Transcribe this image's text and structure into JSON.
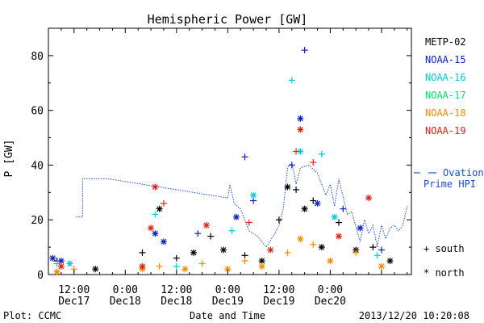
{
  "chart_data": {
    "type": "scatter",
    "title": "Hemispheric Power [GW]",
    "ylabel": "P [GW]",
    "xlabel": "Date and Time",
    "ylim": [
      0,
      90
    ],
    "xlim": [
      "2013-12-17 06:00",
      "2013-12-20 19:00"
    ],
    "yticks": [
      0,
      20,
      40,
      60,
      80
    ],
    "xticks": [
      {
        "time": "2013-12-17 12:00",
        "line1": "12:00",
        "line2": "Dec17"
      },
      {
        "time": "2013-12-18 00:00",
        "line1": "0:00",
        "line2": "Dec18"
      },
      {
        "time": "2013-12-18 12:00",
        "line1": "12:00",
        "line2": "Dec18"
      },
      {
        "time": "2013-12-19 00:00",
        "line1": "0:00",
        "line2": "Dec19"
      },
      {
        "time": "2013-12-19 12:00",
        "line1": "12:00",
        "line2": "Dec19"
      },
      {
        "time": "2013-12-20 00:00",
        "line1": "0:00",
        "line2": "Dec20"
      }
    ],
    "grid": false,
    "legend_position": "right",
    "series": [
      {
        "name": "METP-02",
        "color": "#000000",
        "points": [
          [
            "2013-12-17 08:00",
            5,
            "south"
          ],
          [
            "2013-12-17 17:00",
            2,
            "north"
          ],
          [
            "2013-12-18 04:00",
            8,
            "south"
          ],
          [
            "2013-12-18 08:00",
            24,
            "north"
          ],
          [
            "2013-12-18 12:00",
            6,
            "south"
          ],
          [
            "2013-12-18 16:00",
            8,
            "north"
          ],
          [
            "2013-12-18 20:00",
            14,
            "south"
          ],
          [
            "2013-12-18 23:00",
            9,
            "north"
          ],
          [
            "2013-12-19 04:00",
            7,
            "south"
          ],
          [
            "2013-12-19 08:00",
            5,
            "north"
          ],
          [
            "2013-12-19 12:00",
            20,
            "south"
          ],
          [
            "2013-12-19 14:00",
            32,
            "north"
          ],
          [
            "2013-12-19 16:00",
            31,
            "south"
          ],
          [
            "2013-12-19 18:00",
            24,
            "north"
          ],
          [
            "2013-12-19 20:00",
            27,
            "south"
          ],
          [
            "2013-12-19 22:00",
            10,
            "north"
          ],
          [
            "2013-12-20 02:00",
            19,
            "south"
          ],
          [
            "2013-12-20 06:00",
            9,
            "north"
          ],
          [
            "2013-12-20 10:00",
            10,
            "south"
          ],
          [
            "2013-12-20 14:00",
            5,
            "north"
          ]
        ]
      },
      {
        "name": "NOAA-15",
        "color": "#0a1fc0",
        "points": [
          [
            "2013-12-17 07:00",
            6,
            "north"
          ],
          [
            "2013-12-17 09:00",
            5,
            "north"
          ],
          [
            "2013-12-18 07:00",
            15,
            "north"
          ],
          [
            "2013-12-18 09:00",
            12,
            "north"
          ],
          [
            "2013-12-18 17:00",
            15,
            "south"
          ],
          [
            "2013-12-19 02:00",
            21,
            "north"
          ],
          [
            "2013-12-19 04:00",
            43,
            "south"
          ],
          [
            "2013-12-19 06:00",
            27,
            "south"
          ],
          [
            "2013-12-19 15:00",
            40,
            "south"
          ],
          [
            "2013-12-19 17:00",
            57,
            "north"
          ],
          [
            "2013-12-19 18:00",
            82,
            "south"
          ],
          [
            "2013-12-19 21:00",
            26,
            "north"
          ],
          [
            "2013-12-20 03:00",
            24,
            "south"
          ],
          [
            "2013-12-20 07:00",
            17,
            "north"
          ],
          [
            "2013-12-20 12:00",
            9,
            "south"
          ]
        ]
      },
      {
        "name": "NOAA-16",
        "color": "#00c8e0",
        "points": [
          [
            "2013-12-17 08:00",
            4,
            "south"
          ],
          [
            "2013-12-17 11:00",
            4,
            "north"
          ],
          [
            "2013-12-18 07:00",
            22,
            "south"
          ],
          [
            "2013-12-18 12:00",
            3,
            "south"
          ],
          [
            "2013-12-19 01:00",
            16,
            "south"
          ],
          [
            "2013-12-19 06:00",
            29,
            "north"
          ],
          [
            "2013-12-19 15:00",
            71,
            "south"
          ],
          [
            "2013-12-19 17:00",
            45,
            "north"
          ],
          [
            "2013-12-19 22:00",
            44,
            "south"
          ],
          [
            "2013-12-20 01:00",
            21,
            "north"
          ],
          [
            "2013-12-20 11:00",
            7,
            "south"
          ]
        ]
      },
      {
        "name": "NOAA-17",
        "color": "#00e070",
        "points": []
      },
      {
        "name": "NOAA-18",
        "color": "#f08c00",
        "points": [
          [
            "2013-12-17 08:00",
            1,
            "north"
          ],
          [
            "2013-12-17 12:00",
            2,
            "south"
          ],
          [
            "2013-12-18 04:00",
            2,
            "north"
          ],
          [
            "2013-12-18 08:00",
            3,
            "south"
          ],
          [
            "2013-12-18 14:00",
            2,
            "north"
          ],
          [
            "2013-12-18 18:00",
            4,
            "south"
          ],
          [
            "2013-12-19 00:00",
            2,
            "north"
          ],
          [
            "2013-12-19 04:00",
            5,
            "south"
          ],
          [
            "2013-12-19 08:00",
            3,
            "north"
          ],
          [
            "2013-12-19 14:00",
            8,
            "south"
          ],
          [
            "2013-12-19 17:00",
            13,
            "north"
          ],
          [
            "2013-12-19 20:00",
            11,
            "south"
          ],
          [
            "2013-12-20 00:00",
            5,
            "north"
          ],
          [
            "2013-12-20 06:00",
            8,
            "south"
          ],
          [
            "2013-12-20 12:00",
            3,
            "north"
          ]
        ]
      },
      {
        "name": "NOAA-19",
        "color": "#e02010",
        "points": [
          [
            "2013-12-17 09:00",
            3,
            "north"
          ],
          [
            "2013-12-18 04:00",
            3,
            "north"
          ],
          [
            "2013-12-18 06:00",
            17,
            "north"
          ],
          [
            "2013-12-18 07:00",
            32,
            "north"
          ],
          [
            "2013-12-18 09:00",
            26,
            "south"
          ],
          [
            "2013-12-18 19:00",
            18,
            "north"
          ],
          [
            "2013-12-19 05:00",
            19,
            "south"
          ],
          [
            "2013-12-19 10:00",
            9,
            "north"
          ],
          [
            "2013-12-19 16:00",
            45,
            "south"
          ],
          [
            "2013-12-19 17:00",
            53,
            "north"
          ],
          [
            "2013-12-19 20:00",
            41,
            "south"
          ],
          [
            "2013-12-20 02:00",
            14,
            "north"
          ],
          [
            "2013-12-20 09:00",
            28,
            "north"
          ]
        ]
      }
    ],
    "ovation": {
      "name": "Ovation Prime HPI",
      "color": "#1a4ecc",
      "points": [
        [
          "2013-12-17 12:30",
          21
        ],
        [
          "2013-12-17 14:00",
          21
        ],
        [
          "2013-12-17 14:00",
          35
        ],
        [
          "2013-12-17 20:00",
          35
        ],
        [
          "2013-12-19 00:00",
          28
        ],
        [
          "2013-12-19 00:30",
          33
        ],
        [
          "2013-12-19 01:30",
          26
        ],
        [
          "2013-12-19 03:00",
          24
        ],
        [
          "2013-12-19 05:00",
          16
        ],
        [
          "2013-12-19 07:00",
          14
        ],
        [
          "2013-12-19 09:00",
          10
        ],
        [
          "2013-12-19 11:00",
          15
        ],
        [
          "2013-12-19 12:00",
          18
        ],
        [
          "2013-12-19 13:00",
          24
        ],
        [
          "2013-12-19 14:00",
          39
        ],
        [
          "2013-12-19 15:00",
          41
        ],
        [
          "2013-12-19 16:00",
          33
        ],
        [
          "2013-12-19 17:00",
          39
        ],
        [
          "2013-12-19 19:00",
          40
        ],
        [
          "2013-12-19 21:00",
          37
        ],
        [
          "2013-12-19 23:00",
          29
        ],
        [
          "2013-12-20 00:00",
          33
        ],
        [
          "2013-12-20 01:00",
          25
        ],
        [
          "2013-12-20 02:00",
          35
        ],
        [
          "2013-12-20 04:00",
          22
        ],
        [
          "2013-12-20 05:00",
          23
        ],
        [
          "2013-12-20 07:00",
          12
        ],
        [
          "2013-12-20 08:00",
          20
        ],
        [
          "2013-12-20 09:00",
          15
        ],
        [
          "2013-12-20 10:00",
          18
        ],
        [
          "2013-12-20 11:00",
          10
        ],
        [
          "2013-12-20 12:00",
          18
        ],
        [
          "2013-12-20 13:00",
          13
        ],
        [
          "2013-12-20 14:00",
          17
        ],
        [
          "2013-12-20 15:00",
          18
        ],
        [
          "2013-12-20 16:00",
          16
        ],
        [
          "2013-12-20 17:00",
          18
        ],
        [
          "2013-12-20 18:00",
          25
        ]
      ]
    },
    "marker_legend": {
      "south": "+ south",
      "north": "* north"
    },
    "footer": {
      "left": "Plot: CCMC",
      "right": "2013/12/20 10:20:08"
    }
  }
}
